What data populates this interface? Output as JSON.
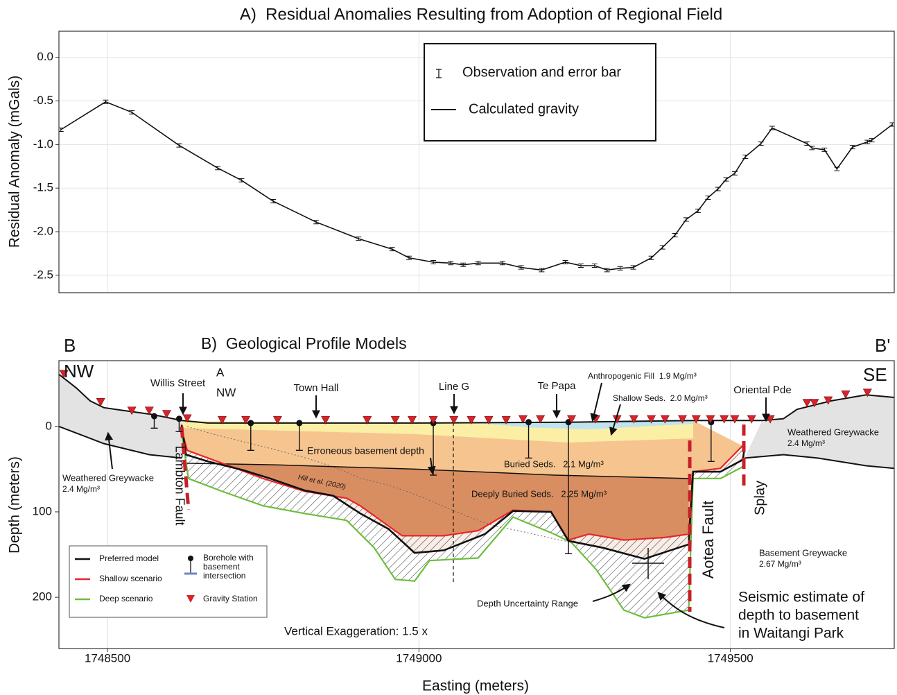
{
  "chart_data": [
    {
      "type": "line",
      "title": "A)  Residual Anomalies Resulting from Adoption of Regional Field",
      "y_label": "Residual Anomaly (mGals)",
      "xlim": [
        1748422,
        1749763
      ],
      "xticks": [
        1748500,
        1749000,
        1749500
      ],
      "ylim": [
        -2.7,
        0.3
      ],
      "yticks": [
        {
          "value": 0,
          "label": "0.0"
        },
        -0.5,
        {
          "value": -1,
          "label": "-1.0"
        },
        -1.5,
        {
          "value": -2,
          "label": "-2.0"
        },
        -2.5
      ],
      "grid": true,
      "x": [
        1748425,
        1748497,
        1748539,
        1748615,
        1748677,
        1748715,
        1748766,
        1748835,
        1748903,
        1748957,
        1748984,
        1749023,
        1749051,
        1749071,
        1749095,
        1749134,
        1749164,
        1749197,
        1749235,
        1749260,
        1749282,
        1749302,
        1749323,
        1749344,
        1749373,
        1749391,
        1749411,
        1749429,
        1749448,
        1749464,
        1749480,
        1749493,
        1749507,
        1749524,
        1749549,
        1749567,
        1749623,
        1749631,
        1749651,
        1749671,
        1749696,
        1749720,
        1749727,
        1749760
      ],
      "series": [
        {
          "name": "Calculated gravity",
          "color": "#111111",
          "values": [
            -0.83,
            -0.51,
            -0.63,
            -1.01,
            -1.27,
            -1.41,
            -1.65,
            -1.89,
            -2.08,
            -2.2,
            -2.3,
            -2.35,
            -2.36,
            -2.38,
            -2.36,
            -2.36,
            -2.41,
            -2.44,
            -2.35,
            -2.39,
            -2.39,
            -2.44,
            -2.42,
            -2.41,
            -2.3,
            -2.18,
            -2.04,
            -1.86,
            -1.76,
            -1.61,
            -1.51,
            -1.4,
            -1.33,
            -1.14,
            -0.99,
            -0.81,
            -0.99,
            -1.04,
            -1.06,
            -1.28,
            -1.03,
            -0.97,
            -0.95,
            -0.77
          ],
          "errors": [
            0.02,
            0.02,
            0.02,
            0.02,
            0.02,
            0.02,
            0.02,
            0.02,
            0.02,
            0.02,
            0.02,
            0.02,
            0.02,
            0.02,
            0.02,
            0.02,
            0.02,
            0.02,
            0.02,
            0.02,
            0.02,
            0.02,
            0.02,
            0.02,
            0.02,
            0.02,
            0.02,
            0.02,
            0.02,
            0.02,
            0.02,
            0.02,
            0.02,
            0.02,
            0.02,
            0.02,
            0.02,
            0.02,
            0.02,
            0.02,
            0.02,
            0.02,
            0.02,
            0.02
          ]
        }
      ],
      "observation_label": "Observation and error bar"
    },
    {
      "type": "profile",
      "title": "B)  Geological Profile Models",
      "x_label": "Easting (meters)",
      "y_label": "Depth (meters)",
      "xlim": [
        1748422,
        1749763
      ],
      "xticks": [
        1748500,
        1749000,
        1749500
      ],
      "ylim": [
        -77,
        260
      ],
      "yticks": [
        0,
        100,
        200
      ],
      "inverted": true,
      "grid": "x",
      "corner_labels": [
        "B",
        "B'",
        "NW",
        "SE"
      ],
      "surface": {
        "x": [
          1748422,
          1748450,
          1748472,
          1748494,
          1748522,
          1748572,
          1748619,
          1748661,
          1748995,
          1749240,
          1749440,
          1749551,
          1749585,
          1749607,
          1749662,
          1749718,
          1749763
        ],
        "values": [
          -61,
          -45,
          -30,
          -22,
          -19,
          -14,
          -7,
          -4,
          -4,
          -5,
          -7,
          -7,
          -9,
          -20,
          -30,
          -37,
          -34
        ]
      },
      "weathered_base": {
        "x": [
          1748422,
          1748494,
          1748567,
          1748619,
          1749000,
          1749523,
          1749585,
          1749640,
          1749718,
          1749763
        ],
        "values": [
          0,
          20,
          33,
          37,
          null,
          37,
          33,
          37,
          46,
          49
        ]
      },
      "buried_base": {
        "x": [
          1748619,
          1748773,
          1748995,
          1749217,
          1749433
        ],
        "values": [
          43,
          45,
          50,
          57,
          61
        ]
      },
      "series": [
        {
          "name": "Preferred model",
          "color": "#111111",
          "x": [
            1748619,
            1748626,
            1748661,
            1748717,
            1748761,
            1748817,
            1748862,
            1748906,
            1748951,
            1748993,
            1749040,
            1749106,
            1749151,
            1749212,
            1749240,
            1749295,
            1749362,
            1749433,
            1749440,
            1749484,
            1749520,
            1749523
          ],
          "values": [
            -2,
            33,
            41,
            51,
            61,
            75,
            81,
            102,
            120,
            148,
            145,
            126,
            99,
            100,
            134,
            142,
            155,
            138,
            53,
            53,
            39,
            24
          ]
        },
        {
          "name": "Shallow scenario",
          "color": "#e8262a",
          "x": [
            1748619,
            1748628,
            1748684,
            1748750,
            1748817,
            1748884,
            1748906,
            1748973,
            1749040,
            1749095,
            1749151,
            1749212,
            1749240,
            1749273,
            1749329,
            1749395,
            1749433,
            1749440,
            1749484,
            1749523
          ],
          "values": [
            4,
            28,
            43,
            61,
            76,
            84,
            93,
            128,
            128,
            122,
            98,
            100,
            133,
            126,
            133,
            130,
            126,
            53,
            49,
            20
          ]
        },
        {
          "name": "Deep scenario",
          "color": "#6cbf3c",
          "x": [
            1748619,
            1748630,
            1748684,
            1748750,
            1748817,
            1748884,
            1748928,
            1748962,
            1748993,
            1749017,
            1749095,
            1749151,
            1749217,
            1749245,
            1749284,
            1749329,
            1749362,
            1749433,
            1749440,
            1749484,
            1749523
          ],
          "values": [
            8,
            61,
            76,
            93,
            102,
            110,
            142,
            179,
            181,
            157,
            154,
            106,
            126,
            136,
            167,
            215,
            224,
            215,
            61,
            61,
            46
          ]
        }
      ],
      "stations": {
        "name": "Gravity Station",
        "color": "#d8232a",
        "x": [
          1748430,
          1748489,
          1748539,
          1748567,
          1748595,
          1748628,
          1748684,
          1748722,
          1748773,
          1748850,
          1748917,
          1748962,
          1748989,
          1749023,
          1749056,
          1749084,
          1749112,
          1749140,
          1749167,
          1749195,
          1749245,
          1749284,
          1749318,
          1749345,
          1749373,
          1749395,
          1749423,
          1749445,
          1749468,
          1749490,
          1749507,
          1749534,
          1749564,
          1749623,
          1749635,
          1749657,
          1749685,
          1749720
        ],
        "values": [
          -61,
          -28,
          -18,
          -18,
          -14,
          -9,
          -7,
          -7,
          -7,
          -7,
          -7,
          -7,
          -7,
          -7,
          -7,
          -7,
          -7,
          -7,
          -8,
          -8,
          -8,
          -8,
          -8,
          -8,
          -8,
          -8,
          -8,
          -8,
          -8,
          -8,
          -8,
          -8,
          -8,
          -27,
          -27,
          -30,
          -37,
          -39
        ]
      },
      "boreholes": {
        "name_lines": [
          "Borehole with",
          "basement",
          "intersection"
        ],
        "x": [
          1748575,
          1748615,
          1748730,
          1748808,
          1749023,
          1749176,
          1749240,
          1749469
        ],
        "top": [
          -12,
          -9,
          -4,
          -4,
          -4,
          -5,
          -5,
          -5
        ],
        "bottom": [
          2,
          6,
          28,
          28,
          57,
          37,
          149,
          41
        ]
      },
      "annotations": [
        "Willis Street",
        "A",
        "NW",
        "Town Hall",
        "Line G",
        "Te Papa",
        "Anthropogenic Fill  1.9 Mg/m³",
        "Shallow Seds.  2.0 Mg/m³",
        "Oriental Pde",
        "Weathered Greywacke",
        "2.4 Mg/m³",
        "Weathered Greywacke",
        "2.4 Mg/m³",
        "Lambton Fault",
        "Erroneous basement depth",
        "Hill et al. (2020)",
        "Buried Seds.   2.1 Mg/m³",
        "Deeply Buried Seds.   2.25 Mg/m³",
        "Aotea Fault",
        "Splay",
        "Basement Greywacke",
        "2.67 Mg/m³",
        "Depth Uncertainty Range",
        "Seismic estimate of",
        "depth to basement",
        "in Waitangi Park",
        "Vertical Exaggeration: 1.5 x"
      ]
    }
  ]
}
